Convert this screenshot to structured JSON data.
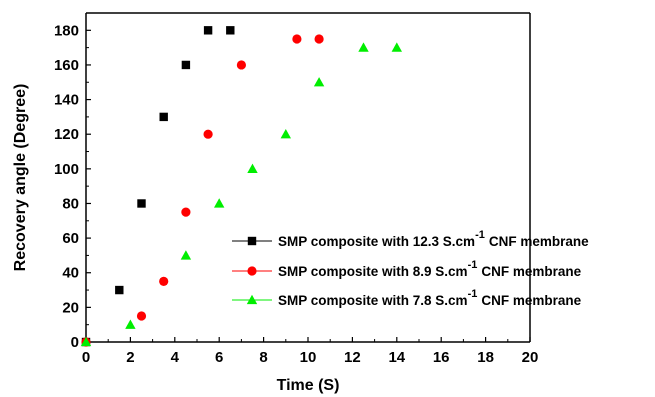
{
  "chart_data": {
    "type": "scatter",
    "xlabel": "Time (S)",
    "ylabel": "Recovery angle  (Degree)",
    "xlim": [
      0,
      20
    ],
    "ylim": [
      0,
      190
    ],
    "xticks": [
      0,
      2,
      4,
      6,
      8,
      10,
      12,
      14,
      16,
      18,
      20
    ],
    "yticks": [
      0,
      20,
      40,
      60,
      80,
      100,
      120,
      140,
      160,
      180
    ],
    "grid": false,
    "legend_position": "bottom-right",
    "series": [
      {
        "name_prefix": "SMP composite with 12.3 S.cm",
        "name_suffix": "CNF membrane",
        "marker": "square",
        "color": "#000000",
        "x": [
          0,
          1.5,
          2.5,
          3.5,
          4.5,
          5.5,
          6.5
        ],
        "y": [
          0,
          30,
          80,
          130,
          160,
          180,
          180
        ]
      },
      {
        "name_prefix": "SMP composite with  8.9 S.cm",
        "name_suffix": "CNF membrane",
        "marker": "circle",
        "color": "#ff0000",
        "x": [
          0,
          2.5,
          3.5,
          4.5,
          5.5,
          7,
          9.5,
          10.5
        ],
        "y": [
          0,
          15,
          35,
          75,
          120,
          160,
          175,
          175
        ]
      },
      {
        "name_prefix": "SMP composite with  7.8 S.cm",
        "name_suffix": "CNF membrane",
        "marker": "triangle",
        "color": "#00ee00",
        "x": [
          0,
          2,
          4.5,
          6,
          7.5,
          9,
          10.5,
          12.5,
          14
        ],
        "y": [
          0,
          10,
          50,
          80,
          100,
          120,
          150,
          170,
          170
        ]
      }
    ],
    "unit_superscript": "-1"
  }
}
